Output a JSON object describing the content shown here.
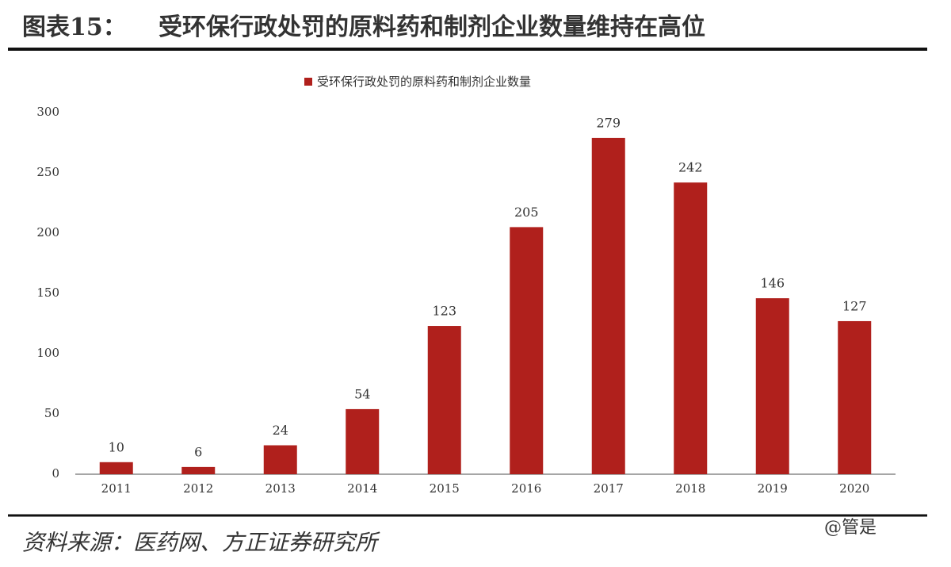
{
  "chart_data": {
    "type": "bar",
    "figure_label": "图表15：",
    "title": "受环保行政处罚的原料药和制剂企业数量维持在高位",
    "legend": "受环保行政处罚的原料药和制剂企业数量",
    "categories": [
      "2011",
      "2012",
      "2013",
      "2014",
      "2015",
      "2016",
      "2017",
      "2018",
      "2019",
      "2020"
    ],
    "values": [
      10,
      6,
      24,
      54,
      123,
      205,
      279,
      242,
      146,
      127
    ],
    "color": "#b0201c",
    "ylim": [
      0,
      300
    ],
    "yticks": [
      0,
      50,
      100,
      150,
      200,
      250,
      300
    ],
    "grid": false,
    "source": "资料来源：医药网、方正证券研究所",
    "watermark": "@管是"
  }
}
